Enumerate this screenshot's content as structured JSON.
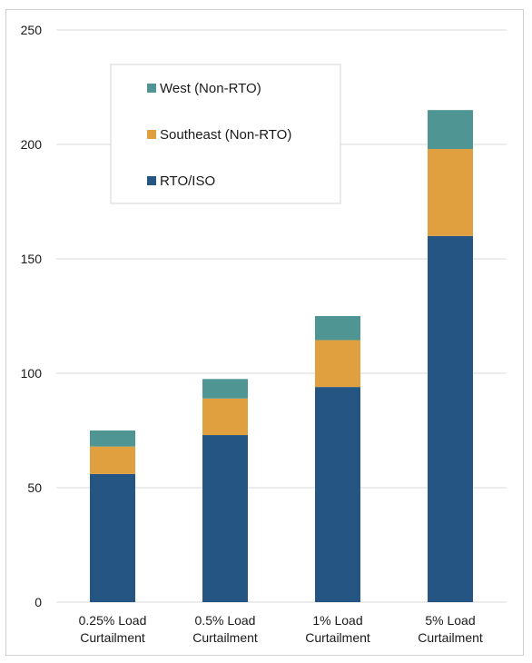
{
  "chart_data": {
    "type": "bar",
    "stacked": true,
    "categories": [
      [
        "0.25% Load",
        "Curtailment"
      ],
      [
        "0.5% Load",
        "Curtailment"
      ],
      [
        "1% Load",
        "Curtailment"
      ],
      [
        "5% Load",
        "Curtailment"
      ]
    ],
    "series": [
      {
        "name": "RTO/ISO",
        "color": "#245583",
        "values": [
          56,
          73,
          94,
          160
        ]
      },
      {
        "name": "Southeast (Non-RTO)",
        "color": "#e0a03f",
        "values": [
          12,
          16,
          20.5,
          38
        ]
      },
      {
        "name": "West (Non-RTO)",
        "color": "#4f9593",
        "values": [
          7,
          8.5,
          10.5,
          17
        ]
      }
    ],
    "ylim": [
      0,
      250
    ],
    "yticks": [
      0,
      50,
      100,
      150,
      200,
      250
    ],
    "grid": true,
    "legend": {
      "placement": "top-left",
      "order": [
        "West (Non-RTO)",
        "Southeast (Non-RTO)",
        "RTO/ISO"
      ]
    },
    "title": "",
    "xlabel": "",
    "ylabel": ""
  }
}
